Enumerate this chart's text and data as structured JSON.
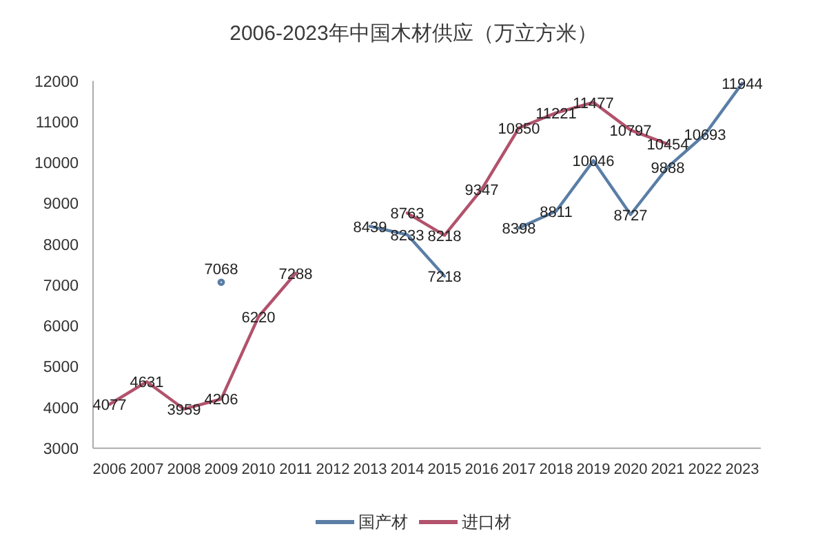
{
  "chart_data": {
    "type": "line",
    "title": "2006-2023年中国木材供应（万立方米）",
    "categories": [
      "2006",
      "2007",
      "2008",
      "2009",
      "2010",
      "2011",
      "2012",
      "2013",
      "2014",
      "2015",
      "2016",
      "2017",
      "2018",
      "2019",
      "2020",
      "2021",
      "2022",
      "2023"
    ],
    "series": [
      {
        "name": "国产材",
        "color": "#5a7ea6",
        "values": [
          null,
          null,
          null,
          7068,
          null,
          null,
          null,
          8439,
          8233,
          7218,
          null,
          8398,
          8811,
          10046,
          8727,
          9888,
          10693,
          11944
        ]
      },
      {
        "name": "进口材",
        "color": "#b2526c",
        "values": [
          4077,
          4631,
          3959,
          4206,
          6220,
          7288,
          null,
          null,
          8763,
          8218,
          9347,
          10850,
          11221,
          11477,
          10797,
          10454,
          null,
          null
        ]
      }
    ],
    "ylim": [
      3000,
      12000
    ],
    "yticks": [
      3000,
      4000,
      5000,
      6000,
      7000,
      8000,
      9000,
      10000,
      11000,
      12000
    ],
    "legend": "bottom",
    "data_labels": true,
    "line_style": "solid"
  }
}
